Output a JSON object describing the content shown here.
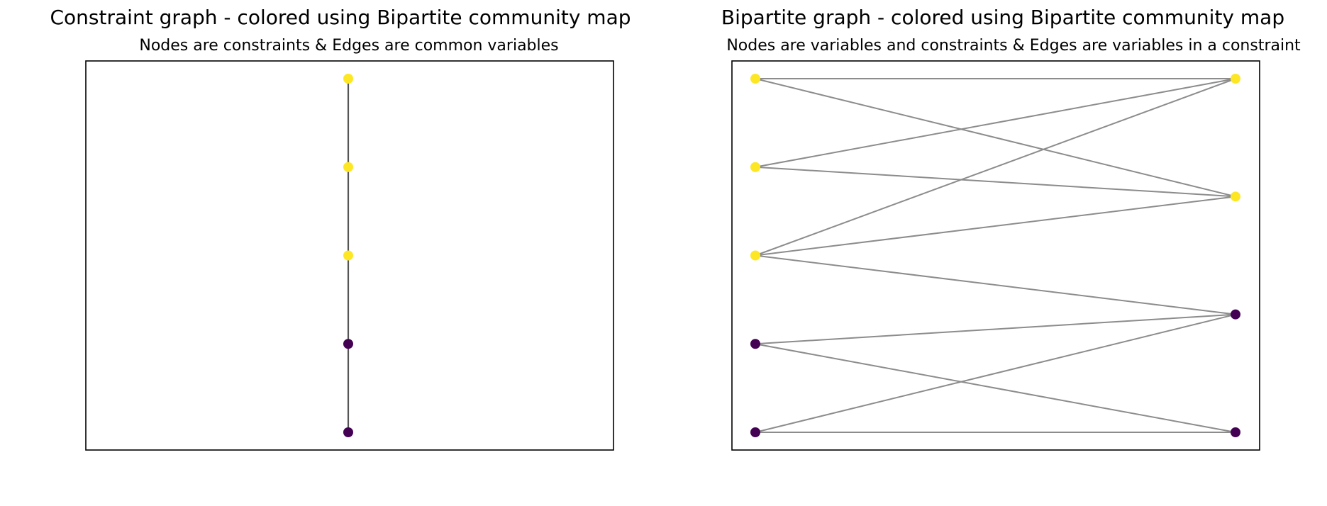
{
  "colors": {
    "yellow": "#fde725",
    "purple": "#440154",
    "constraint_edge": "#555555",
    "bipartite_edge": "#8c8c8c",
    "frame": "#000000"
  },
  "panels": [
    {
      "title": "Constraint graph - colored using Bipartite community map",
      "subtitle": "Nodes are constraints & Edges are common variables",
      "graph": {
        "nodes": [
          {
            "id": "c0",
            "color": "yellow"
          },
          {
            "id": "c1",
            "color": "yellow"
          },
          {
            "id": "c2",
            "color": "yellow"
          },
          {
            "id": "c3",
            "color": "purple"
          },
          {
            "id": "c4",
            "color": "purple"
          }
        ],
        "edges": [
          [
            "c0",
            "c1"
          ],
          [
            "c1",
            "c2"
          ],
          [
            "c2",
            "c3"
          ],
          [
            "c3",
            "c4"
          ]
        ]
      }
    },
    {
      "title": "Bipartite graph - colored using Bipartite community map",
      "subtitle": "Nodes are variables and constraints & Edges are variables in a constraint",
      "graph": {
        "left_nodes": [
          {
            "id": "L0",
            "color": "yellow"
          },
          {
            "id": "L1",
            "color": "yellow"
          },
          {
            "id": "L2",
            "color": "yellow"
          },
          {
            "id": "L3",
            "color": "purple"
          },
          {
            "id": "L4",
            "color": "purple"
          }
        ],
        "right_nodes": [
          {
            "id": "R0",
            "color": "yellow"
          },
          {
            "id": "R1",
            "color": "yellow"
          },
          {
            "id": "R2",
            "color": "purple"
          },
          {
            "id": "R3",
            "color": "purple"
          }
        ],
        "edges": [
          [
            "L0",
            "R0"
          ],
          [
            "L0",
            "R1"
          ],
          [
            "L1",
            "R0"
          ],
          [
            "L1",
            "R1"
          ],
          [
            "L2",
            "R0"
          ],
          [
            "L2",
            "R1"
          ],
          [
            "L2",
            "R2"
          ],
          [
            "L3",
            "R2"
          ],
          [
            "L3",
            "R3"
          ],
          [
            "L4",
            "R2"
          ],
          [
            "L4",
            "R3"
          ]
        ]
      }
    }
  ]
}
